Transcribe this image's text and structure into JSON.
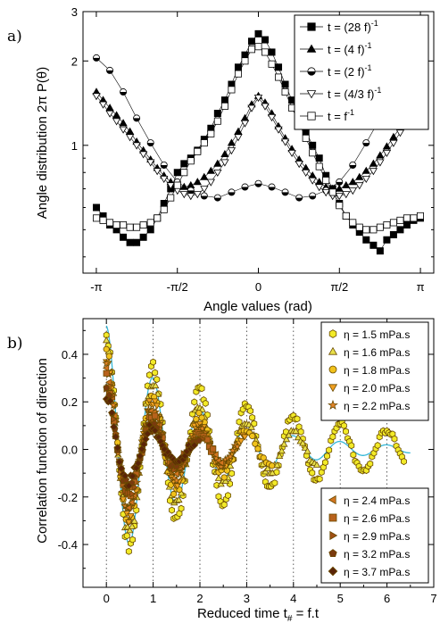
{
  "chart_data": [
    {
      "panel_label": "a)",
      "type": "scatter",
      "xlabel": "Angle values (rad)",
      "ylabel": "Angle distribution 2π P(θ)",
      "yscale": "log",
      "xlim": [
        -3.4,
        3.4
      ],
      "ylim": [
        0.35,
        3
      ],
      "xticks": [
        -3.1416,
        -1.5708,
        0,
        1.5708,
        3.1416
      ],
      "xticklabels": [
        "-π",
        "-π/2",
        "0",
        "π/2",
        "π"
      ],
      "yticks": [
        1,
        2,
        3
      ],
      "yticklabels": [
        "1",
        "2",
        "3"
      ],
      "legend_position": "top-right",
      "series": [
        {
          "name_main": "t = (28 f)",
          "name_sup": "-1",
          "marker": "square-filled",
          "x": [
            -3.14,
            -3.01,
            -2.88,
            -2.75,
            -2.62,
            -2.49,
            -2.36,
            -2.23,
            -2.09,
            -1.96,
            -1.83,
            -1.7,
            -1.57,
            -1.44,
            -1.31,
            -1.18,
            -1.05,
            -0.92,
            -0.79,
            -0.65,
            -0.52,
            -0.39,
            -0.26,
            -0.13,
            0,
            0.13,
            0.26,
            0.39,
            0.52,
            0.65,
            0.79,
            0.92,
            1.05,
            1.18,
            1.31,
            1.44,
            1.57,
            1.7,
            1.83,
            1.96,
            2.09,
            2.23,
            2.36,
            2.49,
            2.62,
            2.75,
            2.88,
            3.01,
            3.14
          ],
          "y": [
            0.6,
            0.56,
            0.52,
            0.5,
            0.47,
            0.45,
            0.45,
            0.47,
            0.5,
            0.55,
            0.62,
            0.7,
            0.8,
            0.86,
            0.9,
            0.96,
            1.05,
            1.15,
            1.3,
            1.45,
            1.65,
            1.9,
            2.1,
            2.35,
            2.5,
            2.38,
            2.15,
            1.9,
            1.65,
            1.45,
            1.28,
            1.12,
            1.0,
            0.9,
            0.78,
            0.7,
            0.62,
            0.56,
            0.52,
            0.49,
            0.46,
            0.44,
            0.42,
            0.46,
            0.48,
            0.5,
            0.52,
            0.54,
            0.55
          ]
        },
        {
          "name_main": "t = (4 f)",
          "name_sup": "-1",
          "marker": "triangle-up-filled",
          "x": [
            -3.14,
            -3.01,
            -2.88,
            -2.75,
            -2.62,
            -2.49,
            -2.36,
            -2.23,
            -2.09,
            -1.96,
            -1.83,
            -1.7,
            -1.57,
            -1.44,
            -1.31,
            -1.18,
            -1.05,
            -0.92,
            -0.79,
            -0.65,
            -0.52,
            -0.39,
            -0.26,
            -0.13,
            0,
            0.13,
            0.26,
            0.39,
            0.52,
            0.65,
            0.79,
            0.92,
            1.05,
            1.18,
            1.31,
            1.44,
            1.57,
            1.7,
            1.83,
            1.96,
            2.09,
            2.23,
            2.36,
            2.49,
            2.62,
            2.75,
            2.88,
            3.01,
            3.14
          ],
          "y": [
            1.55,
            1.45,
            1.36,
            1.28,
            1.2,
            1.12,
            1.03,
            0.96,
            0.89,
            0.83,
            0.78,
            0.74,
            0.72,
            0.71,
            0.72,
            0.74,
            0.77,
            0.81,
            0.86,
            0.93,
            1.02,
            1.12,
            1.25,
            1.4,
            1.5,
            1.42,
            1.3,
            1.17,
            1.06,
            0.97,
            0.89,
            0.83,
            0.78,
            0.74,
            0.71,
            0.7,
            0.7,
            0.72,
            0.74,
            0.77,
            0.81,
            0.86,
            0.92,
            0.99,
            1.07,
            1.16,
            1.26,
            1.36,
            1.48
          ]
        },
        {
          "name_main": "t = (2 f)",
          "name_sup": "-1",
          "marker": "circle-half",
          "x": [
            -3.14,
            -2.88,
            -2.62,
            -2.36,
            -2.09,
            -1.83,
            -1.57,
            -1.31,
            -1.05,
            -0.79,
            -0.52,
            -0.26,
            0,
            0.26,
            0.52,
            0.79,
            1.05,
            1.31,
            1.57,
            1.83,
            2.09,
            2.36,
            2.62,
            2.88,
            3.14
          ],
          "y": [
            2.05,
            1.85,
            1.55,
            1.25,
            1.02,
            0.85,
            0.74,
            0.69,
            0.66,
            0.65,
            0.68,
            0.71,
            0.73,
            0.71,
            0.68,
            0.65,
            0.66,
            0.69,
            0.74,
            0.85,
            1.02,
            1.25,
            1.55,
            1.85,
            2.0
          ]
        },
        {
          "name_main": "t = (4/3 f)",
          "name_sup": "-1",
          "marker": "triangle-down-open",
          "x": [
            -3.14,
            -3.01,
            -2.88,
            -2.75,
            -2.62,
            -2.49,
            -2.36,
            -2.23,
            -2.09,
            -1.96,
            -1.83,
            -1.7,
            -1.57,
            -1.44,
            -1.31,
            -1.18,
            -1.05,
            -0.92,
            -0.79,
            -0.65,
            -0.52,
            -0.39,
            -0.26,
            -0.13,
            0,
            0.13,
            0.26,
            0.39,
            0.52,
            0.65,
            0.79,
            0.92,
            1.05,
            1.18,
            1.31,
            1.44,
            1.57,
            1.7,
            1.83,
            1.96,
            2.09,
            2.23,
            2.36,
            2.49,
            2.62,
            2.75,
            2.88,
            3.01,
            3.14
          ],
          "y": [
            1.5,
            1.4,
            1.3,
            1.22,
            1.14,
            1.07,
            1.0,
            0.93,
            0.87,
            0.81,
            0.76,
            0.72,
            0.69,
            0.67,
            0.66,
            0.67,
            0.7,
            0.74,
            0.8,
            0.87,
            0.96,
            1.07,
            1.2,
            1.36,
            1.48,
            1.38,
            1.26,
            1.14,
            1.03,
            0.94,
            0.86,
            0.8,
            0.75,
            0.71,
            0.68,
            0.66,
            0.66,
            0.67,
            0.69,
            0.72,
            0.76,
            0.81,
            0.87,
            0.94,
            1.02,
            1.11,
            1.22,
            1.35,
            1.55
          ]
        },
        {
          "name_main": "t = f",
          "name_sup": "-1",
          "marker": "square-open",
          "x": [
            -3.14,
            -3.01,
            -2.88,
            -2.75,
            -2.62,
            -2.49,
            -2.36,
            -2.23,
            -2.09,
            -1.96,
            -1.83,
            -1.7,
            -1.57,
            -1.44,
            -1.31,
            -1.18,
            -1.05,
            -0.92,
            -0.79,
            -0.65,
            -0.52,
            -0.39,
            -0.26,
            -0.13,
            0,
            0.13,
            0.26,
            0.39,
            0.52,
            0.65,
            0.79,
            0.92,
            1.05,
            1.18,
            1.31,
            1.44,
            1.57,
            1.7,
            1.83,
            1.96,
            2.09,
            2.23,
            2.36,
            2.49,
            2.62,
            2.75,
            2.88,
            3.01,
            3.14
          ],
          "y": [
            0.55,
            0.54,
            0.53,
            0.52,
            0.52,
            0.51,
            0.51,
            0.52,
            0.53,
            0.55,
            0.59,
            0.65,
            0.72,
            0.8,
            0.88,
            0.95,
            1.02,
            1.1,
            1.22,
            1.38,
            1.58,
            1.8,
            2.0,
            2.2,
            2.25,
            2.15,
            1.95,
            1.75,
            1.55,
            1.36,
            1.2,
            1.06,
            0.94,
            0.84,
            0.75,
            0.68,
            0.61,
            0.56,
            0.53,
            0.51,
            0.5,
            0.5,
            0.51,
            0.52,
            0.53,
            0.54,
            0.55,
            0.55,
            0.56
          ]
        }
      ]
    },
    {
      "panel_label": "b)",
      "type": "scatter",
      "xlabel_main": "Reduced time t",
      "xlabel_sub": "#",
      "xlabel_tail": " = f.t",
      "ylabel": "Correlation function of direction",
      "xlim": [
        -0.5,
        7
      ],
      "ylim": [
        -0.58,
        0.55
      ],
      "xticks": [
        0,
        1,
        2,
        3,
        4,
        5,
        6,
        7
      ],
      "yticks": [
        -0.4,
        -0.2,
        0.0,
        0.2,
        0.4
      ],
      "yticklabels": [
        "-0.4",
        "-0.2",
        "0.0",
        "0.2",
        "0.4"
      ],
      "grid": "vertical dotted lines at integer x",
      "fit_curve": {
        "color": "#35b8d8",
        "form": "damped cosine",
        "amplitude": 0.52,
        "decay_per_unit": 0.55,
        "period": 1
      },
      "legend_top_position": "top-right",
      "legend_bottom_position": "bottom-right",
      "series": [
        {
          "name": "η = 1.5 mPa.s",
          "marker": "hexagon",
          "color": "#f2ea28",
          "damping": 0.3,
          "t_end": 6.4
        },
        {
          "name": "η = 1.6 mPa.s",
          "marker": "triangle-up",
          "color": "#e8e04a",
          "damping": 0.45,
          "t_end": 4.5
        },
        {
          "name": "η = 1.8 mPa.s",
          "marker": "circle",
          "color": "#f1c21b",
          "damping": 0.55,
          "t_end": 3.6
        },
        {
          "name": "η = 2.0 mPa.s",
          "marker": "triangle-down",
          "color": "#f0a020",
          "damping": 0.65,
          "t_end": 3.0
        },
        {
          "name": "η = 2.2 mPa.s",
          "marker": "star",
          "color": "#e5862a",
          "damping": 0.75,
          "t_end": 2.8
        },
        {
          "name": "η = 2.4 mPa.s",
          "marker": "triangle-left",
          "color": "#d2741f",
          "damping": 0.8,
          "t_end": 2.5
        },
        {
          "name": "η = 2.6 mPa.s",
          "marker": "square",
          "color": "#b8621c",
          "damping": 0.85,
          "t_end": 2.3
        },
        {
          "name": "η = 2.9 mPa.s",
          "marker": "triangle-right",
          "color": "#a04f14",
          "damping": 0.9,
          "t_end": 2.1
        },
        {
          "name": "η = 3.2 mPa.s",
          "marker": "pentagon",
          "color": "#7a3a0e",
          "damping": 0.95,
          "t_end": 2.0
        },
        {
          "name": "η = 3.7 mPa.s",
          "marker": "diamond",
          "color": "#5a2408",
          "damping": 1.0,
          "t_end": 1.9
        }
      ]
    }
  ]
}
